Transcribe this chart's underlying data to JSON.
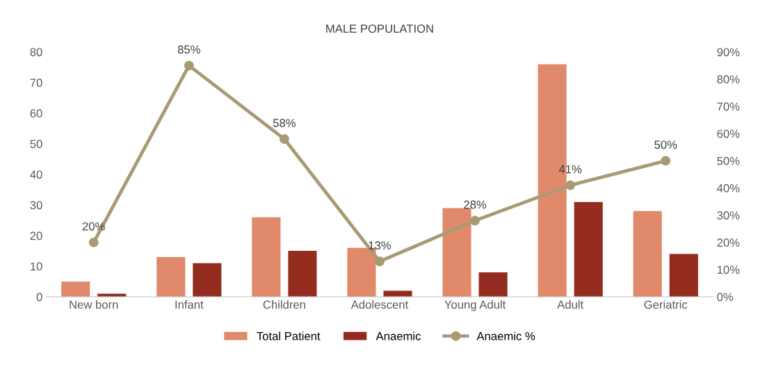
{
  "chart_data": {
    "type": "bar",
    "title": "MALE POPULATION",
    "categories": [
      "New born",
      "Infant",
      "Children",
      "Adolescent",
      "Young Adult",
      "Adult",
      "Geriatric"
    ],
    "series": [
      {
        "name": "Total Patient",
        "color": "#e0896b",
        "values": [
          5,
          13,
          26,
          16,
          29,
          76,
          28
        ]
      },
      {
        "name": "Anaemic",
        "color": "#932b1f",
        "values": [
          1,
          11,
          15,
          2,
          8,
          31,
          14
        ]
      },
      {
        "name": "Anaemic %",
        "type": "line",
        "axis": "y2",
        "color": "#a89b74",
        "marker": "circle",
        "values": [
          20,
          85,
          58,
          13,
          28,
          41,
          50
        ],
        "value_labels": [
          "20%",
          "85%",
          "58%",
          "13%",
          "28%",
          "41%",
          "50%"
        ]
      }
    ],
    "ylim": [
      0,
      80
    ],
    "yticks": [
      0,
      10,
      20,
      30,
      40,
      50,
      60,
      70,
      80
    ],
    "y2lim": [
      0,
      90
    ],
    "y2ticks": [
      {
        "value": 0,
        "label": "0%"
      },
      {
        "value": 10,
        "label": "10%"
      },
      {
        "value": 20,
        "label": "20%"
      },
      {
        "value": 30,
        "label": "30%"
      },
      {
        "value": 40,
        "label": "40%"
      },
      {
        "value": 50,
        "label": "50%"
      },
      {
        "value": 60,
        "label": "60%"
      },
      {
        "value": 70,
        "label": "70%"
      },
      {
        "value": 80,
        "label": "80%"
      },
      {
        "value": 90,
        "label": "90%"
      }
    ],
    "legend": "bottom",
    "grid": false
  }
}
